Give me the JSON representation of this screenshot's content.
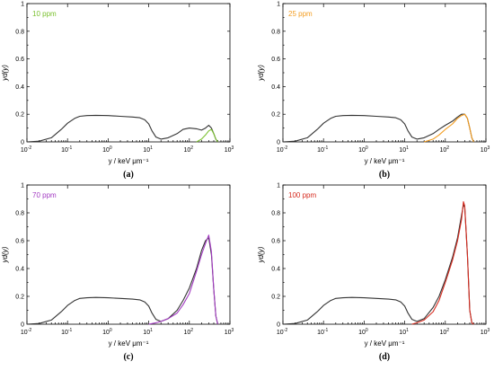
{
  "chart_data": [
    {
      "type": "line",
      "panel_label": "(a)",
      "legend_text": "10 ppm",
      "legend_color": "#7ac02e",
      "xlabel": "y / keV μm⁻¹",
      "ylabel": "yd(y)",
      "xscale": "log",
      "xlim": [
        0.01,
        1000
      ],
      "ylim": [
        0,
        1.0
      ],
      "yticks": [
        "0",
        "0.2",
        "0.4",
        "0.6",
        "0.8",
        "1"
      ],
      "xticks": [
        "10⁻²",
        "10⁻¹",
        "10⁰",
        "10¹",
        "10²",
        "10³"
      ],
      "series": [
        {
          "color": "#333333",
          "x": [
            0.01,
            0.02,
            0.04,
            0.07,
            0.1,
            0.15,
            0.2,
            0.3,
            0.5,
            1,
            2,
            4,
            6,
            8,
            10,
            12,
            15,
            20,
            30,
            50,
            70,
            100,
            150,
            200,
            250,
            300,
            350,
            400,
            450,
            500
          ],
          "y": [
            0,
            0.005,
            0.03,
            0.09,
            0.135,
            0.17,
            0.185,
            0.19,
            0.192,
            0.19,
            0.185,
            0.18,
            0.175,
            0.16,
            0.13,
            0.08,
            0.035,
            0.02,
            0.03,
            0.06,
            0.09,
            0.1,
            0.095,
            0.085,
            0.1,
            0.12,
            0.1,
            0.06,
            0.02,
            0
          ]
        },
        {
          "color": "#7ac02e",
          "x": [
            150,
            200,
            250,
            300,
            350,
            400,
            450,
            500
          ],
          "y": [
            0,
            0.02,
            0.05,
            0.08,
            0.09,
            0.06,
            0.02,
            0
          ]
        }
      ]
    },
    {
      "type": "line",
      "panel_label": "(b)",
      "legend_text": "25 ppm",
      "legend_color": "#f39c1f",
      "xlabel": "y / keV μm⁻¹",
      "ylabel": "yd(y)",
      "xscale": "log",
      "xlim": [
        0.01,
        1000
      ],
      "ylim": [
        0,
        1.0
      ],
      "yticks": [
        "0",
        "0.2",
        "0.4",
        "0.6",
        "0.8",
        "1"
      ],
      "xticks": [
        "10⁻²",
        "10⁻¹",
        "10⁰",
        "10¹",
        "10²",
        "10³"
      ],
      "series": [
        {
          "color": "#333333",
          "x": [
            0.01,
            0.02,
            0.04,
            0.07,
            0.1,
            0.15,
            0.2,
            0.3,
            0.5,
            1,
            2,
            4,
            6,
            8,
            10,
            12,
            15,
            20,
            30,
            50,
            70,
            100,
            150,
            200,
            250,
            300,
            350,
            400,
            450,
            500
          ],
          "y": [
            0,
            0.005,
            0.03,
            0.09,
            0.135,
            0.17,
            0.185,
            0.19,
            0.192,
            0.19,
            0.185,
            0.18,
            0.175,
            0.16,
            0.13,
            0.08,
            0.035,
            0.02,
            0.03,
            0.06,
            0.09,
            0.12,
            0.15,
            0.18,
            0.2,
            0.2,
            0.17,
            0.1,
            0.03,
            0
          ]
        },
        {
          "color": "#f39c1f",
          "x": [
            30,
            50,
            70,
            100,
            150,
            200,
            250,
            300,
            350,
            400,
            450,
            500
          ],
          "y": [
            0,
            0.02,
            0.05,
            0.09,
            0.13,
            0.17,
            0.19,
            0.2,
            0.17,
            0.1,
            0.03,
            0
          ]
        }
      ]
    },
    {
      "type": "line",
      "panel_label": "(c)",
      "legend_text": "70 ppm",
      "legend_color": "#a33bc2",
      "xlabel": "y / keV μm⁻¹",
      "ylabel": "yd(y)",
      "xscale": "log",
      "xlim": [
        0.01,
        1000
      ],
      "ylim": [
        0,
        1.0
      ],
      "yticks": [
        "0",
        "0.2",
        "0.4",
        "0.6",
        "0.8",
        "1"
      ],
      "xticks": [
        "10⁻²",
        "10⁻¹",
        "10⁰",
        "10¹",
        "10²",
        "10³"
      ],
      "series": [
        {
          "color": "#333333",
          "x": [
            0.01,
            0.02,
            0.04,
            0.07,
            0.1,
            0.15,
            0.2,
            0.3,
            0.5,
            1,
            2,
            4,
            6,
            8,
            10,
            12,
            15,
            20,
            30,
            50,
            70,
            100,
            150,
            200,
            250,
            300,
            350,
            400,
            450,
            500
          ],
          "y": [
            0,
            0.005,
            0.03,
            0.09,
            0.135,
            0.17,
            0.185,
            0.19,
            0.192,
            0.19,
            0.185,
            0.18,
            0.175,
            0.16,
            0.13,
            0.08,
            0.035,
            0.02,
            0.04,
            0.1,
            0.17,
            0.26,
            0.4,
            0.53,
            0.6,
            0.62,
            0.5,
            0.25,
            0.06,
            0
          ]
        },
        {
          "color": "#a33bc2",
          "x": [
            10,
            15,
            20,
            30,
            50,
            70,
            100,
            150,
            200,
            250,
            300,
            350,
            400,
            450,
            500
          ],
          "y": [
            0,
            0.01,
            0.02,
            0.04,
            0.08,
            0.14,
            0.22,
            0.38,
            0.5,
            0.58,
            0.64,
            0.52,
            0.25,
            0.06,
            0
          ]
        }
      ]
    },
    {
      "type": "line",
      "panel_label": "(d)",
      "legend_text": "100 ppm",
      "legend_color": "#d62b1f",
      "xlabel": "y / keV μm⁻¹",
      "ylabel": "yd(y)",
      "xscale": "log",
      "xlim": [
        0.01,
        1000
      ],
      "ylim": [
        0,
        1.0
      ],
      "yticks": [
        "0",
        "0.2",
        "0.4",
        "0.6",
        "0.8",
        "1"
      ],
      "xticks": [
        "10⁻²",
        "10⁻¹",
        "10⁰",
        "10¹",
        "10²",
        "10³"
      ],
      "series": [
        {
          "color": "#333333",
          "x": [
            0.01,
            0.02,
            0.04,
            0.07,
            0.1,
            0.15,
            0.2,
            0.3,
            0.5,
            1,
            2,
            4,
            6,
            8,
            10,
            12,
            15,
            20,
            30,
            50,
            70,
            100,
            150,
            200,
            250,
            280,
            300,
            350,
            400,
            450,
            500
          ],
          "y": [
            0,
            0.005,
            0.03,
            0.09,
            0.135,
            0.17,
            0.185,
            0.19,
            0.192,
            0.19,
            0.185,
            0.18,
            0.175,
            0.16,
            0.13,
            0.08,
            0.035,
            0.02,
            0.04,
            0.12,
            0.2,
            0.32,
            0.48,
            0.62,
            0.78,
            0.86,
            0.84,
            0.5,
            0.1,
            0.01,
            0
          ]
        },
        {
          "color": "#d62b1f",
          "x": [
            15,
            20,
            30,
            50,
            70,
            100,
            150,
            200,
            250,
            280,
            300,
            350,
            400,
            450,
            500
          ],
          "y": [
            0,
            0.01,
            0.03,
            0.09,
            0.17,
            0.3,
            0.46,
            0.6,
            0.75,
            0.88,
            0.85,
            0.5,
            0.1,
            0.01,
            0
          ]
        }
      ]
    }
  ]
}
